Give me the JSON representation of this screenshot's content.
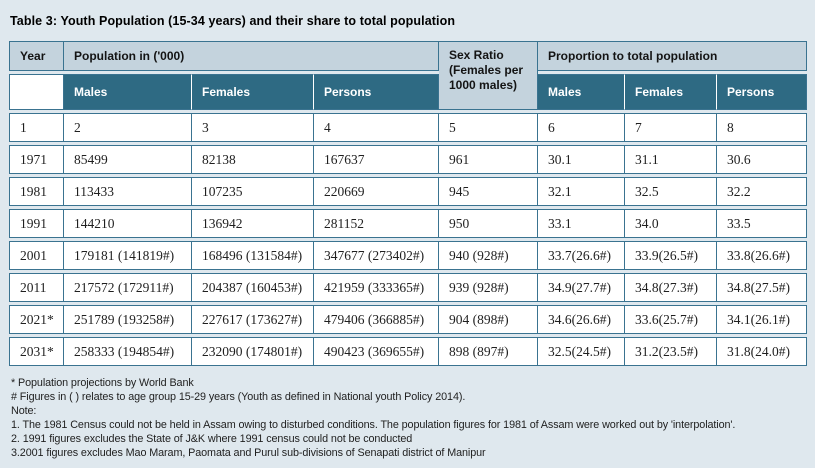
{
  "page": {
    "title": "Table 3: Youth Population (15-34 years) and their share to total population"
  },
  "table": {
    "header": {
      "year_label": "Year",
      "population_group_label": "Population in ('000)",
      "sex_ratio_label": "Sex Ratio (Females per 1000 males)",
      "proportion_group_label": "Proportion to total population",
      "sub_labels": [
        "Males",
        "Females",
        "Persons"
      ]
    },
    "column_numbers": [
      "1",
      "2",
      "3",
      "4",
      "5",
      "6",
      "7",
      "8"
    ],
    "rows": [
      {
        "year": "1971",
        "males": "85499",
        "females": "82138",
        "persons": "167637",
        "sex_ratio": "961",
        "p_males": "30.1",
        "p_females": "31.1",
        "p_persons": "30.6"
      },
      {
        "year": "1981",
        "males": "113433",
        "females": "107235",
        "persons": "220669",
        "sex_ratio": "945",
        "p_males": "32.1",
        "p_females": "32.5",
        "p_persons": "32.2"
      },
      {
        "year": "1991",
        "males": "144210",
        "females": "136942",
        "persons": "281152",
        "sex_ratio": "950",
        "p_males": "33.1",
        "p_females": "34.0",
        "p_persons": "33.5"
      },
      {
        "year": "2001",
        "males": "179181 (141819#)",
        "females": "168496 (131584#)",
        "persons": "347677 (273402#)",
        "sex_ratio": "940 (928#)",
        "p_males": "33.7(26.6#)",
        "p_females": "33.9(26.5#)",
        "p_persons": "33.8(26.6#)"
      },
      {
        "year": "2011",
        "males": "217572 (172911#)",
        "females": "204387 (160453#)",
        "persons": "421959 (333365#)",
        "sex_ratio": "939 (928#)",
        "p_males": "34.9(27.7#)",
        "p_females": "34.8(27.3#)",
        "p_persons": "34.8(27.5#)"
      },
      {
        "year": "2021*",
        "males": "251789 (193258#)",
        "females": "227617 (173627#)",
        "persons": "479406 (366885#)",
        "sex_ratio": "904 (898#)",
        "p_males": "34.6(26.6#)",
        "p_females": "33.6(25.7#)",
        "p_persons": "34.1(26.1#)"
      },
      {
        "year": "2031*",
        "males": "258333 (194854#)",
        "females": "232090 (174801#)",
        "persons": "490423 (369655#)",
        "sex_ratio": "898 (897#)",
        "p_males": "32.5(24.5#)",
        "p_females": "31.2(23.5#)",
        "p_persons": "31.8(24.0#)"
      }
    ]
  },
  "footnotes": {
    "star": "* Population projections by World Bank",
    "hash": "# Figures in ( ) relates to age group 15-29 years (Youth as defined in National youth Policy 2014).",
    "note_label": "Note:",
    "notes": [
      "1. The 1981 Census could not be held in Assam owing to disturbed conditions. The population figures for 1981 of Assam were worked out by 'interpolation'.",
      "2. 1991 figures excludes the State of J&K where 1991 census could not be conducted",
      "3.2001 figures excludes Mao Maram, Paomata and Purul sub-divisions of Senapati district of Manipur"
    ]
  },
  "colors": {
    "page_bg": "#dfe8ee",
    "header_light_bg": "#c4d3dd",
    "header_dark_bg": "#2e6a83",
    "border": "#3a7390",
    "data_row_bg": "#ffffff",
    "text": "#1f1f1f"
  }
}
